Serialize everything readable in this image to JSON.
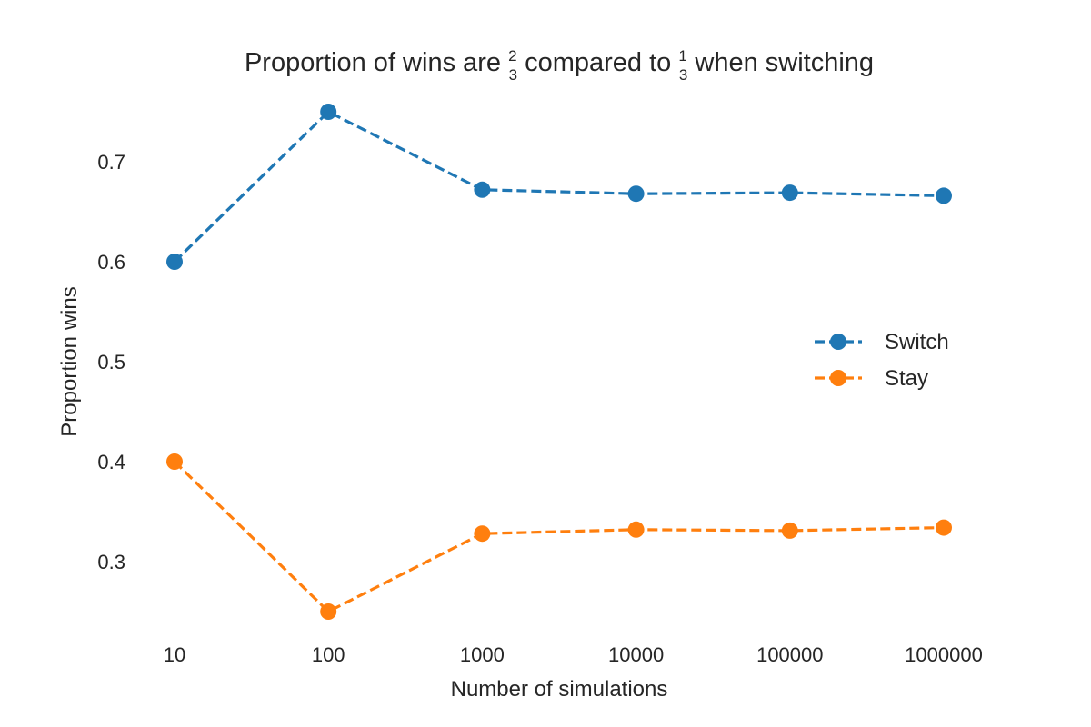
{
  "chart_data": {
    "type": "line",
    "title": {
      "part1": "Proportion of wins are ",
      "frac1_num": "2",
      "frac1_den": "3",
      "part2": " compared to ",
      "frac2_num": "1",
      "frac2_den": "3",
      "part3": " when switching"
    },
    "xlabel": "Number of simulations",
    "ylabel": "Proportion wins",
    "categories": [
      "10",
      "100",
      "1000",
      "10000",
      "100000",
      "1000000"
    ],
    "yticks": [
      "0.3",
      "0.4",
      "0.5",
      "0.6",
      "0.7"
    ],
    "ylim": [
      0.225,
      0.775
    ],
    "grid": false,
    "legend_position": "center-right",
    "series": [
      {
        "name": "Switch",
        "color": "#1f77b4",
        "values": [
          0.6,
          0.75,
          0.672,
          0.668,
          0.669,
          0.666
        ]
      },
      {
        "name": "Stay",
        "color": "#ff7f0e",
        "values": [
          0.4,
          0.25,
          0.328,
          0.332,
          0.331,
          0.334
        ]
      }
    ]
  }
}
